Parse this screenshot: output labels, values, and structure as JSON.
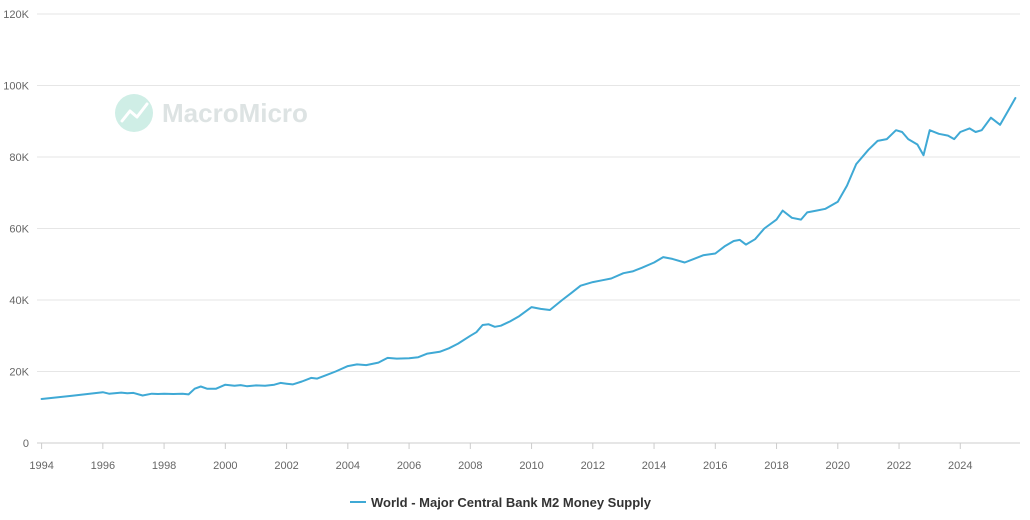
{
  "watermark": {
    "text": "MacroMicro",
    "color": "#cfeee6"
  },
  "chart_data": {
    "type": "line",
    "title": "",
    "xlabel": "",
    "ylabel": "",
    "xlim": [
      1993.85,
      2025.95
    ],
    "ylim": [
      0,
      120000
    ],
    "y_ticks": [
      0,
      20000,
      40000,
      60000,
      80000,
      100000,
      120000
    ],
    "y_tick_labels": [
      "0",
      "20K",
      "40K",
      "60K",
      "80K",
      "100K",
      "120K"
    ],
    "x_ticks": [
      1994,
      1996,
      1998,
      2000,
      2002,
      2004,
      2006,
      2008,
      2010,
      2012,
      2014,
      2016,
      2018,
      2020,
      2022,
      2024
    ],
    "x_tick_labels": [
      "1994",
      "1996",
      "1998",
      "2000",
      "2002",
      "2004",
      "2006",
      "2008",
      "2010",
      "2012",
      "2014",
      "2016",
      "2018",
      "2020",
      "2022",
      "2024"
    ],
    "grid": true,
    "legend_position": "bottom-center",
    "series": [
      {
        "name": "World - Major Central Bank M2 Money Supply",
        "color": "#3fa9d5",
        "x": [
          1994.0,
          1995.0,
          1996.0,
          1996.2,
          1996.6,
          1996.8,
          1997.0,
          1997.3,
          1997.6,
          1997.8,
          1998.0,
          1998.3,
          1998.6,
          1998.8,
          1999.0,
          1999.2,
          1999.4,
          1999.7,
          2000.0,
          2000.3,
          2000.5,
          2000.7,
          2001.0,
          2001.3,
          2001.6,
          2001.8,
          2002.0,
          2002.2,
          2002.5,
          2002.8,
          2003.0,
          2003.3,
          2003.6,
          2004.0,
          2004.3,
          2004.6,
          2005.0,
          2005.3,
          2005.6,
          2006.0,
          2006.3,
          2006.6,
          2007.0,
          2007.3,
          2007.6,
          2008.0,
          2008.2,
          2008.4,
          2008.6,
          2008.8,
          2009.0,
          2009.3,
          2009.6,
          2010.0,
          2010.3,
          2010.6,
          2011.0,
          2011.3,
          2011.6,
          2012.0,
          2012.3,
          2012.6,
          2013.0,
          2013.3,
          2013.6,
          2014.0,
          2014.3,
          2014.6,
          2015.0,
          2015.3,
          2015.6,
          2016.0,
          2016.3,
          2016.6,
          2016.8,
          2017.0,
          2017.3,
          2017.6,
          2018.0,
          2018.2,
          2018.5,
          2018.8,
          2019.0,
          2019.3,
          2019.6,
          2020.0,
          2020.3,
          2020.6,
          2021.0,
          2021.3,
          2021.6,
          2021.9,
          2022.1,
          2022.3,
          2022.6,
          2022.8,
          2023.0,
          2023.3,
          2023.6,
          2023.8,
          2024.0,
          2024.3,
          2024.5,
          2024.7,
          2025.0,
          2025.3,
          2025.6,
          2025.8
        ],
        "values": [
          12300,
          13200,
          14200,
          13800,
          14100,
          13900,
          14000,
          13300,
          13800,
          13700,
          13800,
          13700,
          13800,
          13600,
          15200,
          15800,
          15200,
          15200,
          16300,
          16000,
          16200,
          15900,
          16100,
          16000,
          16300,
          16800,
          16600,
          16400,
          17200,
          18200,
          18000,
          19000,
          20000,
          21500,
          22000,
          21800,
          22500,
          23800,
          23600,
          23700,
          24000,
          25000,
          25500,
          26500,
          27800,
          30000,
          31000,
          33000,
          33200,
          32500,
          32800,
          34000,
          35500,
          38000,
          37500,
          37200,
          40000,
          42000,
          44000,
          45000,
          45500,
          46000,
          47500,
          48000,
          49000,
          50500,
          52000,
          51500,
          50500,
          51500,
          52500,
          53000,
          55000,
          56500,
          56800,
          55500,
          57000,
          60000,
          62500,
          65000,
          63000,
          62500,
          64500,
          65000,
          65500,
          67500,
          72000,
          78000,
          82000,
          84500,
          85000,
          87500,
          87000,
          85000,
          83500,
          80500,
          87500,
          86500,
          86000,
          85000,
          87000,
          88000,
          87000,
          87500,
          91000,
          89000,
          93500,
          96500
        ]
      }
    ]
  }
}
